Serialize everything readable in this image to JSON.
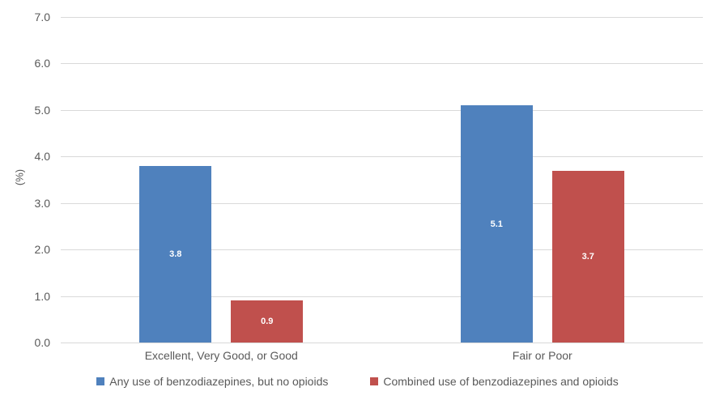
{
  "chart_data": {
    "type": "bar",
    "categories": [
      "Excellent, Very Good, or Good",
      "Fair or Poor"
    ],
    "series": [
      {
        "name": "Any use of benzodiazepines, but no opioids",
        "color": "#4F81BD",
        "values": [
          3.8,
          5.1
        ]
      },
      {
        "name": "Combined use of benzodiazepines and opioids",
        "color": "#C0504D",
        "values": [
          0.9,
          3.7
        ]
      }
    ],
    "title": "",
    "xlabel": "",
    "ylabel": "(%)",
    "ylim": [
      0,
      7
    ],
    "ytick_step": 1,
    "ytick_decimals": 1,
    "grid": true,
    "legend_position": "bottom",
    "value_labels": true,
    "value_label_decimals": 1,
    "colors": {
      "grid": "#D9D9D9",
      "axis_text": "#595959",
      "bar_label_text": "#FFFFFF",
      "background": "#FFFFFF"
    }
  }
}
